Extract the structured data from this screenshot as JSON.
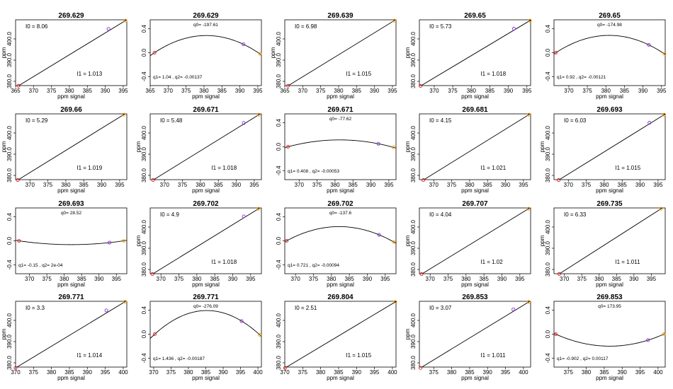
{
  "figure": {
    "colors": {
      "line": "#000000",
      "point1": "#e41a1c",
      "point2": "#8a2be2",
      "point3": "#ffa500"
    }
  },
  "chart_data": [
    {
      "type": "line",
      "fit": "linear",
      "title": "269.629",
      "xlabel": "ppm signal",
      "ylabel": "ppm",
      "xlim": [
        365,
        396
      ],
      "ylim": [
        378,
        409
      ],
      "xticks": [
        365,
        370,
        375,
        380,
        385,
        390,
        395
      ],
      "yticks": [
        380,
        390,
        400
      ],
      "points": [
        {
          "x": 365.8,
          "y": 377.9
        },
        {
          "x": 390.9,
          "y": 404.7
        },
        {
          "x": 395.6,
          "y": 408.6
        }
      ],
      "annotations": {
        "I0": "I0 =  8.06",
        "I1": "I1 =  1.013"
      }
    },
    {
      "type": "line",
      "fit": "quadratic",
      "title": "269.629",
      "xlabel": "ppm signal",
      "ylabel": "",
      "xlim": [
        365,
        396
      ],
      "ylim": [
        -0.55,
        0.55
      ],
      "xticks": [
        365,
        370,
        375,
        380,
        385,
        390,
        395
      ],
      "yticks": [
        -0.4,
        0.0,
        0.4
      ],
      "points": [
        {
          "x": 366.2,
          "y": 0.0
        },
        {
          "x": 391.0,
          "y": 0.14
        },
        {
          "x": 395.6,
          "y": -0.02
        }
      ],
      "annotations": {
        "q0": "q0= -197.61",
        "q12": "q1= 1.04 , q2= -0.00137"
      }
    },
    {
      "type": "line",
      "fit": "linear",
      "title": "269.639",
      "xlabel": "ppm signal",
      "ylabel": "ppm",
      "xlim": [
        365,
        396
      ],
      "ylim": [
        378,
        409
      ],
      "xticks": [
        365,
        370,
        375,
        380,
        385,
        390,
        395
      ],
      "yticks": [
        380,
        390,
        400
      ],
      "points": [
        {
          "x": 365.9,
          "y": 377.9
        },
        {
          "x": 395.5,
          "y": 408.6
        }
      ],
      "annotations": {
        "I0": "I0 =  6.98",
        "I1": "I1 =  1.015"
      }
    },
    {
      "type": "line",
      "fit": "linear",
      "title": "269.65",
      "xlabel": "ppm signal",
      "ylabel": "ppm",
      "xlim": [
        366,
        396
      ],
      "ylim": [
        378,
        409
      ],
      "xticks": [
        370,
        375,
        380,
        385,
        390,
        395
      ],
      "yticks": [
        380,
        390,
        400
      ],
      "points": [
        {
          "x": 366.3,
          "y": 377.8
        },
        {
          "x": 391.5,
          "y": 404.8
        },
        {
          "x": 395.8,
          "y": 408.6
        }
      ],
      "annotations": {
        "I0": "I0 =  5.73",
        "I1": "I1 =  1.018"
      }
    },
    {
      "type": "line",
      "fit": "quadratic",
      "title": "269.65",
      "xlabel": "ppm signal",
      "ylabel": "",
      "xlim": [
        366,
        396
      ],
      "ylim": [
        -0.55,
        0.55
      ],
      "xticks": [
        370,
        375,
        380,
        385,
        390,
        395
      ],
      "yticks": [
        -0.4,
        0.0,
        0.4
      ],
      "points": [
        {
          "x": 366.5,
          "y": 0.0
        },
        {
          "x": 391.6,
          "y": 0.13
        },
        {
          "x": 395.8,
          "y": -0.02
        }
      ],
      "annotations": {
        "q0": "q0= -174.98",
        "q12": "q1= 0.92 , q2= -0.00121"
      }
    },
    {
      "type": "line",
      "fit": "linear",
      "title": "269.66",
      "xlabel": "ppm signal",
      "ylabel": "ppm",
      "xlim": [
        366,
        397
      ],
      "ylim": [
        378,
        409
      ],
      "xticks": [
        370,
        375,
        380,
        385,
        390,
        395
      ],
      "yticks": [
        380,
        390,
        400
      ],
      "points": [
        {
          "x": 366.6,
          "y": 377.8
        },
        {
          "x": 396.1,
          "y": 408.6
        }
      ],
      "annotations": {
        "I0": "I0 =  5.29",
        "I1": "I1 =  1.019"
      }
    },
    {
      "type": "line",
      "fit": "linear",
      "title": "269.671",
      "xlabel": "ppm signal",
      "ylabel": "ppm",
      "xlim": [
        366,
        397
      ],
      "ylim": [
        378,
        409
      ],
      "xticks": [
        370,
        375,
        380,
        385,
        390,
        395
      ],
      "yticks": [
        380,
        390,
        400
      ],
      "points": [
        {
          "x": 366.8,
          "y": 377.8
        },
        {
          "x": 392.1,
          "y": 404.7
        },
        {
          "x": 396.3,
          "y": 408.6
        }
      ],
      "annotations": {
        "I0": "I0 =  5.48",
        "I1": "I1 =  1.018"
      }
    },
    {
      "type": "line",
      "fit": "quadratic",
      "title": "269.671",
      "xlabel": "ppm signal",
      "ylabel": "",
      "xlim": [
        366,
        397
      ],
      "ylim": [
        -0.55,
        0.55
      ],
      "xticks": [
        370,
        375,
        380,
        385,
        390,
        395
      ],
      "yticks": [
        -0.4,
        0.0,
        0.4
      ],
      "points": [
        {
          "x": 366.9,
          "y": 0.0
        },
        {
          "x": 392.1,
          "y": 0.05
        },
        {
          "x": 396.3,
          "y": -0.01
        }
      ],
      "annotations": {
        "q0": "q0= -77.62",
        "q12": "q1= 0.408 , q2= -0.00053"
      }
    },
    {
      "type": "line",
      "fit": "linear",
      "title": "269.681",
      "xlabel": "ppm signal",
      "ylabel": "ppm",
      "xlim": [
        366,
        397
      ],
      "ylim": [
        378,
        409
      ],
      "xticks": [
        370,
        375,
        380,
        385,
        390,
        395
      ],
      "yticks": [
        380,
        390,
        400
      ],
      "points": [
        {
          "x": 367.1,
          "y": 377.8
        },
        {
          "x": 396.5,
          "y": 408.6
        }
      ],
      "annotations": {
        "I0": "I0 =  4.15",
        "I1": "I1 =  1.021"
      }
    },
    {
      "type": "line",
      "fit": "linear",
      "title": "269.693",
      "xlabel": "ppm signal",
      "ylabel": "ppm",
      "xlim": [
        366,
        397
      ],
      "ylim": [
        378,
        409
      ],
      "xticks": [
        370,
        375,
        380,
        385,
        390,
        395
      ],
      "yticks": [
        380,
        390,
        400
      ],
      "points": [
        {
          "x": 367.3,
          "y": 377.8
        },
        {
          "x": 392.6,
          "y": 404.8
        },
        {
          "x": 396.7,
          "y": 408.6
        }
      ],
      "annotations": {
        "I0": "I0 =  6.03",
        "I1": "I1 =  1.015"
      }
    },
    {
      "type": "line",
      "fit": "quadratic",
      "title": "269.693",
      "xlabel": "ppm signal",
      "ylabel": "",
      "xlim": [
        366,
        398
      ],
      "ylim": [
        -0.55,
        0.55
      ],
      "xticks": [
        370,
        375,
        380,
        385,
        390,
        395
      ],
      "yticks": [
        -0.4,
        0.0,
        0.4
      ],
      "points": [
        {
          "x": 367.0,
          "y": 0.0
        },
        {
          "x": 393.0,
          "y": -0.03
        },
        {
          "x": 397.1,
          "y": 0.0
        }
      ],
      "annotations": {
        "q0": "q0= 28.52",
        "q12": "q1= -0.15 , q2= 2e-04"
      }
    },
    {
      "type": "line",
      "fit": "linear",
      "title": "269.702",
      "xlabel": "ppm signal",
      "ylabel": "ppm",
      "xlim": [
        367,
        398
      ],
      "ylim": [
        378,
        409
      ],
      "xticks": [
        370,
        375,
        380,
        385,
        390,
        395
      ],
      "yticks": [
        380,
        390,
        400
      ],
      "points": [
        {
          "x": 367.6,
          "y": 377.8
        },
        {
          "x": 393.1,
          "y": 405.0
        },
        {
          "x": 397.2,
          "y": 408.6
        }
      ],
      "annotations": {
        "I0": "I0 =  4.9",
        "I1": "I1 =  1.018"
      }
    },
    {
      "type": "line",
      "fit": "quadratic",
      "title": "269.702",
      "xlabel": "ppm signal",
      "ylabel": "",
      "xlim": [
        367,
        398
      ],
      "ylim": [
        -0.55,
        0.55
      ],
      "xticks": [
        370,
        375,
        380,
        385,
        390,
        395
      ],
      "yticks": [
        -0.4,
        0.0,
        0.4
      ],
      "points": [
        {
          "x": 367.5,
          "y": 0.0
        },
        {
          "x": 393.3,
          "y": 0.1
        },
        {
          "x": 397.4,
          "y": -0.02
        }
      ],
      "annotations": {
        "q0": "q0= -137.6",
        "q12": "q1= 0.721 , q2= -0.00094"
      }
    },
    {
      "type": "line",
      "fit": "linear",
      "title": "269.707",
      "xlabel": "ppm signal",
      "ylabel": "ppm",
      "xlim": [
        367,
        398
      ],
      "ylim": [
        378,
        409
      ],
      "xticks": [
        370,
        375,
        380,
        385,
        390,
        395
      ],
      "yticks": [
        380,
        390,
        400
      ],
      "points": [
        {
          "x": 367.6,
          "y": 377.8
        },
        {
          "x": 397.4,
          "y": 408.6
        }
      ],
      "annotations": {
        "I0": "I0 =  4.04",
        "I1": "I1 =  1.02"
      }
    },
    {
      "type": "line",
      "fit": "linear",
      "title": "269.735",
      "xlabel": "ppm signal",
      "ylabel": "ppm",
      "xlim": [
        367,
        399
      ],
      "ylim": [
        378,
        409
      ],
      "xticks": [
        370,
        375,
        380,
        385,
        390,
        395
      ],
      "yticks": [
        380,
        390,
        400
      ],
      "points": [
        {
          "x": 368.5,
          "y": 377.9
        },
        {
          "x": 397.8,
          "y": 408.6
        }
      ],
      "annotations": {
        "I0": "I0 =  6.33",
        "I1": "I1 =  1.011"
      }
    },
    {
      "type": "line",
      "fit": "linear",
      "title": "269.771",
      "xlabel": "ppm signal",
      "ylabel": "ppm",
      "xlim": [
        370,
        401
      ],
      "ylim": [
        378,
        409
      ],
      "xticks": [
        370,
        375,
        380,
        385,
        390,
        395,
        400
      ],
      "yticks": [
        380,
        390,
        400
      ],
      "points": [
        {
          "x": 370.0,
          "y": 377.6
        },
        {
          "x": 395.3,
          "y": 404.7
        },
        {
          "x": 400.5,
          "y": 408.8
        }
      ],
      "annotations": {
        "I0": "I0 =  3.3",
        "I1": "I1 =  1.014"
      }
    },
    {
      "type": "line",
      "fit": "quadratic",
      "title": "269.771",
      "xlabel": "ppm signal",
      "ylabel": "",
      "xlim": [
        369,
        401
      ],
      "ylim": [
        -0.55,
        0.55
      ],
      "xticks": [
        370,
        375,
        380,
        385,
        390,
        395,
        400
      ],
      "yticks": [
        -0.4,
        0.0,
        0.4
      ],
      "points": [
        {
          "x": 370.3,
          "y": 0.0
        },
        {
          "x": 395.3,
          "y": 0.22
        },
        {
          "x": 400.5,
          "y": -0.01
        }
      ],
      "annotations": {
        "q0": "q0= -276.09",
        "q12": "q1= 1.436 , q2= -0.00187"
      }
    },
    {
      "type": "line",
      "fit": "linear",
      "title": "269.804",
      "xlabel": "ppm signal",
      "ylabel": "",
      "xlim": [
        370,
        401
      ],
      "ylim": [
        378,
        409
      ],
      "xticks": [
        370,
        375,
        380,
        385,
        390,
        395,
        400
      ],
      "yticks": [
        380,
        390,
        400
      ],
      "points": [
        {
          "x": 370.1,
          "y": 377.6
        },
        {
          "x": 400.8,
          "y": 408.7
        }
      ],
      "annotations": {
        "I0": "I0 =  2.51",
        "I1": "I1 =  1.015"
      }
    },
    {
      "type": "line",
      "fit": "linear",
      "title": "269.853",
      "xlabel": "ppm signal",
      "ylabel": "ppm",
      "xlim": [
        371,
        402
      ],
      "ylim": [
        378,
        409
      ],
      "xticks": [
        375,
        380,
        385,
        390,
        395,
        400
      ],
      "yticks": [
        380,
        390,
        400
      ],
      "points": [
        {
          "x": 371.3,
          "y": 377.6
        },
        {
          "x": 397.2,
          "y": 405.2
        },
        {
          "x": 401.5,
          "y": 408.7
        }
      ],
      "annotations": {
        "I0": "I0 =  3.07",
        "I1": "I1 =  1.011"
      }
    },
    {
      "type": "line",
      "fit": "quadratic",
      "title": "269.853",
      "xlabel": "ppm signal",
      "ylabel": "",
      "xlim": [
        371,
        402
      ],
      "ylim": [
        -0.55,
        0.55
      ],
      "xticks": [
        375,
        380,
        385,
        390,
        395,
        400
      ],
      "yticks": [
        -0.4,
        0.0,
        0.4
      ],
      "points": [
        {
          "x": 371.5,
          "y": 0.0
        },
        {
          "x": 397.2,
          "y": -0.1
        },
        {
          "x": 401.6,
          "y": 0.0
        }
      ],
      "annotations": {
        "q0": "q0= 173.95",
        "q12": "q1= -0.902 , q2= 0.00117"
      }
    }
  ]
}
